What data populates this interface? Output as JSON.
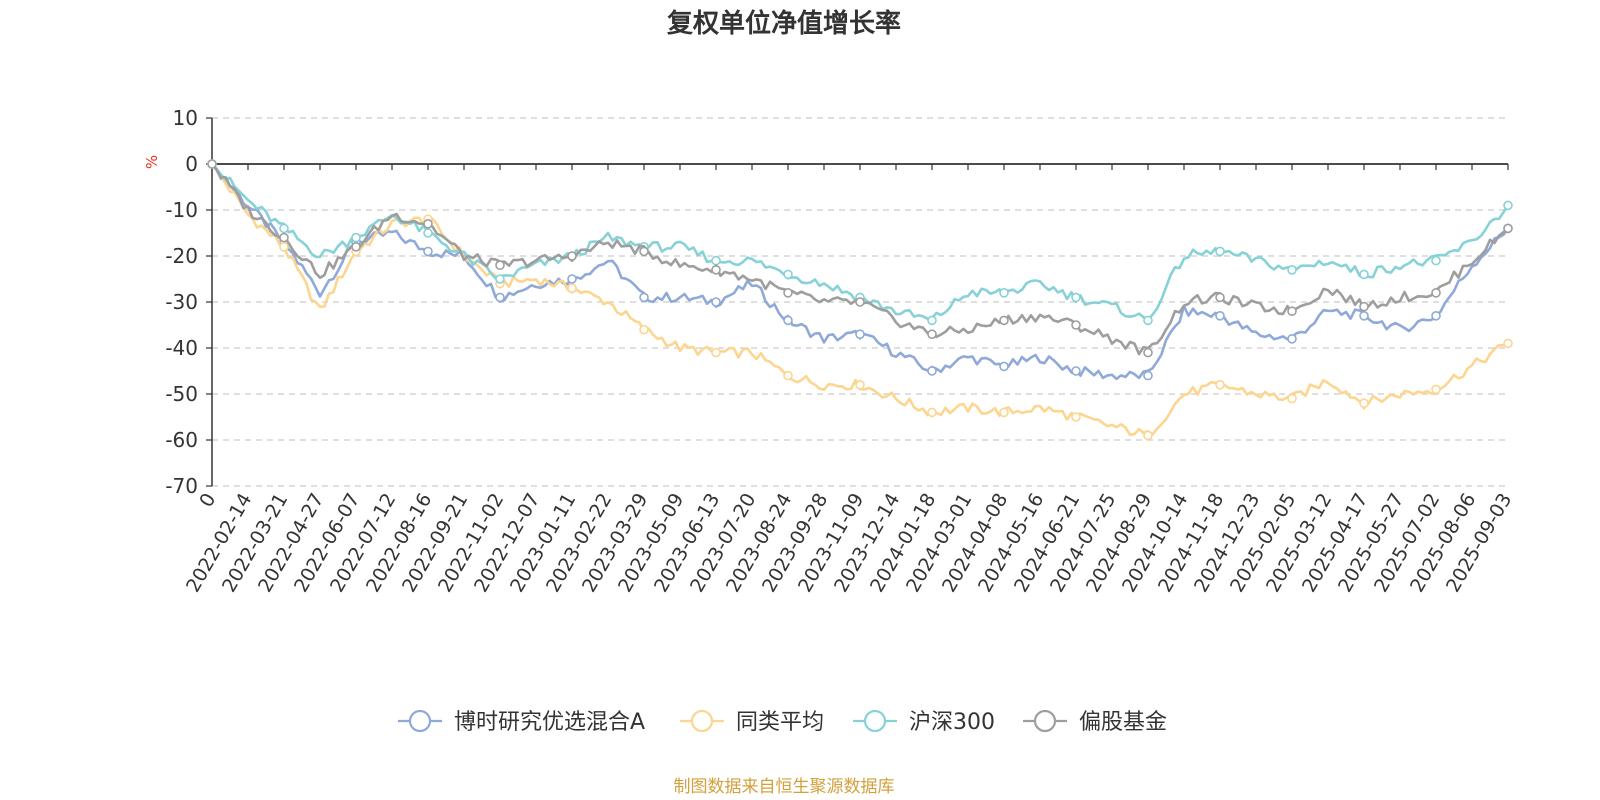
{
  "chart_data": {
    "type": "line",
    "title": "复权单位净值增长率",
    "ylabel": "%",
    "ylim": [
      -70,
      10
    ],
    "yticks": [
      10,
      0,
      -10,
      -20,
      -30,
      -40,
      -50,
      -60,
      -70
    ],
    "grid": true,
    "legend_position": "bottom",
    "x_categories": [
      "0",
      "2022-02-14",
      "2022-03-21",
      "2022-04-27",
      "2022-06-07",
      "2022-07-12",
      "2022-08-16",
      "2022-09-21",
      "2022-11-02",
      "2022-12-07",
      "2023-01-11",
      "2023-02-22",
      "2023-03-29",
      "2023-05-09",
      "2023-06-13",
      "2023-07-20",
      "2023-08-24",
      "2023-09-28",
      "2023-11-09",
      "2023-12-14",
      "2024-01-18",
      "2024-03-01",
      "2024-04-08",
      "2024-05-16",
      "2024-06-21",
      "2024-07-25",
      "2024-08-29",
      "2024-10-14",
      "2024-11-18",
      "2024-12-23",
      "2025-02-05",
      "2025-03-12",
      "2025-04-17",
      "2025-05-27",
      "2025-07-02",
      "2025-08-06",
      "2025-09-03"
    ],
    "series": [
      {
        "name": "博时研究优选混合A",
        "color": "#8fa9d8",
        "values": [
          0,
          -9,
          -17,
          -28,
          -17,
          -15,
          -19,
          -20,
          -29,
          -26,
          -25,
          -21,
          -29,
          -29,
          -30,
          -26,
          -34,
          -38,
          -37,
          -41,
          -45,
          -42,
          -44,
          -42,
          -45,
          -46,
          -46,
          -32,
          -33,
          -37,
          -38,
          -32,
          -33,
          -36,
          -33,
          -22,
          -14
        ]
      },
      {
        "name": "同类平均",
        "color": "#fcd58f",
        "values": [
          0,
          -11,
          -18,
          -32,
          -19,
          -13,
          -12,
          -20,
          -26,
          -25,
          -27,
          -30,
          -36,
          -40,
          -41,
          -41,
          -46,
          -48,
          -48,
          -51,
          -54,
          -53,
          -54,
          -53,
          -55,
          -57,
          -59,
          -50,
          -48,
          -50,
          -51,
          -47,
          -52,
          -50,
          -49,
          -44,
          -39
        ]
      },
      {
        "name": "沪深300",
        "color": "#86d2d6",
        "values": [
          0,
          -8,
          -14,
          -20,
          -16,
          -11,
          -15,
          -20,
          -25,
          -22,
          -20,
          -16,
          -18,
          -18,
          -21,
          -21,
          -24,
          -26,
          -29,
          -32,
          -34,
          -28,
          -28,
          -26,
          -29,
          -31,
          -34,
          -20,
          -19,
          -21,
          -23,
          -21,
          -24,
          -22,
          -21,
          -17,
          -9
        ]
      },
      {
        "name": "偏股基金",
        "color": "#9e9e9e",
        "values": [
          0,
          -10,
          -16,
          -24,
          -18,
          -11,
          -13,
          -20,
          -22,
          -21,
          -20,
          -17,
          -19,
          -22,
          -23,
          -25,
          -28,
          -30,
          -30,
          -34,
          -37,
          -36,
          -34,
          -33,
          -35,
          -38,
          -41,
          -30,
          -29,
          -31,
          -32,
          -27,
          -31,
          -29,
          -28,
          -21,
          -14
        ]
      }
    ]
  },
  "footer_source": "制图数据来自恒生聚源数据库"
}
